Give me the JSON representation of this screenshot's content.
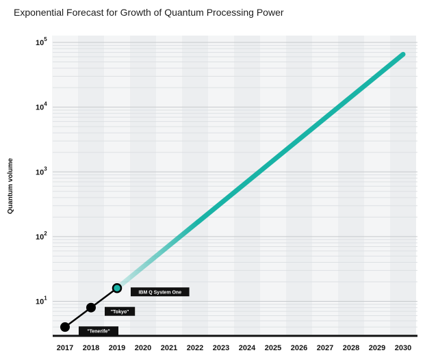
{
  "chart_data": {
    "type": "line",
    "title": "Exponential Forecast for Growth of Quantum Processing Power",
    "xlabel": "",
    "ylabel": "Quantum volume",
    "x_ticks": [
      "2017",
      "2018",
      "2019",
      "2020",
      "2021",
      "2022",
      "2023",
      "2024",
      "2025",
      "2026",
      "2027",
      "2028",
      "2029",
      "2030"
    ],
    "y_scale": "log",
    "ylim": [
      3,
      100000
    ],
    "y_ticks": [
      {
        "base": "10",
        "exp": "1",
        "value": 10
      },
      {
        "base": "10",
        "exp": "2",
        "value": 100
      },
      {
        "base": "10",
        "exp": "3",
        "value": 1000
      },
      {
        "base": "10",
        "exp": "4",
        "value": 10000
      },
      {
        "base": "10",
        "exp": "5",
        "value": 100000
      }
    ],
    "grid": true,
    "series": [
      {
        "name": "",
        "style": "measured",
        "color": "#000000",
        "points": [
          {
            "x": 2017,
            "y": 4,
            "label": "\"Tenerife\""
          },
          {
            "x": 2018,
            "y": 8,
            "label": "\"Tokyo\""
          },
          {
            "x": 2019,
            "y": 16,
            "label": "IBM Q System One"
          }
        ]
      },
      {
        "name": "",
        "style": "forecast",
        "color": "#19b3a6",
        "points": [
          {
            "x": 2019,
            "y": 16
          },
          {
            "x": 2030,
            "y": 65536
          }
        ]
      }
    ]
  }
}
